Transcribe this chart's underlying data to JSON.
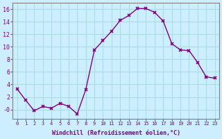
{
  "x": [
    0,
    1,
    2,
    3,
    4,
    5,
    6,
    7,
    8,
    9,
    10,
    11,
    12,
    13,
    14,
    15,
    16,
    17,
    18,
    19,
    20,
    21,
    22,
    23
  ],
  "y": [
    3.3,
    1.5,
    -0.2,
    0.5,
    0.2,
    1.0,
    0.5,
    -0.7,
    3.2,
    9.5,
    11.0,
    12.5,
    14.2,
    15.0,
    16.1,
    16.1,
    15.5,
    14.1,
    10.5,
    9.5,
    9.4,
    7.5,
    5.2,
    5.0
  ],
  "line_color": "#800080",
  "xlabel": "Windchill (Refroidissement éolien,°C)",
  "xlim": [
    -0.5,
    23.5
  ],
  "ylim": [
    -1.5,
    17.0
  ],
  "yticks": [
    0,
    2,
    4,
    6,
    8,
    10,
    12,
    14,
    16
  ],
  "ytick_labels": [
    "-0",
    "2",
    "4",
    "6",
    "8",
    "10",
    "12",
    "14",
    "16"
  ],
  "xticks": [
    0,
    1,
    2,
    3,
    4,
    5,
    6,
    7,
    8,
    9,
    10,
    11,
    12,
    13,
    14,
    15,
    16,
    17,
    18,
    19,
    20,
    21,
    22,
    23
  ],
  "bg_color": "#cceeff",
  "grid_color": "#aadddd",
  "label_color": "#800080",
  "font_family": "monospace"
}
